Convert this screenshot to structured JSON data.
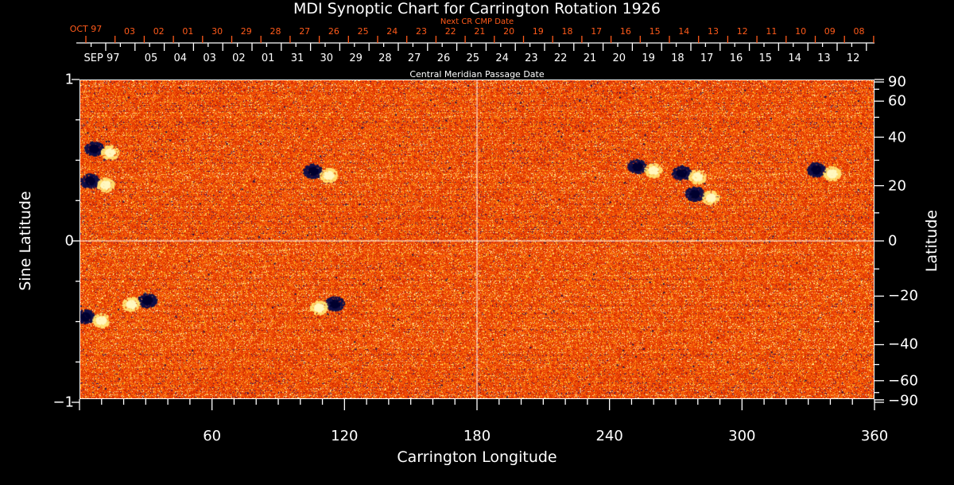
{
  "chart_data": {
    "type": "heatmap",
    "title": "MDI Synoptic Chart for Carrington Rotation 1926",
    "xlabel": "Carrington Longitude",
    "ylabel": "Sine Latitude",
    "y2label": "Latitude",
    "xlim": [
      0,
      360
    ],
    "ylim": [
      -1,
      1
    ],
    "x_ticks": [
      "60",
      "120",
      "180",
      "240",
      "300",
      "360"
    ],
    "y_ticks": [
      "1",
      "0",
      "−1"
    ],
    "y2_ticks": [
      "90",
      "60",
      "40",
      "20",
      "0",
      "−20",
      "−40",
      "−60",
      "−90"
    ],
    "top_axis": {
      "title": "Central Meridian Passage Date",
      "start_label": "SEP 97",
      "dates": [
        "05",
        "04",
        "03",
        "02",
        "01",
        "31",
        "30",
        "29",
        "28",
        "27",
        "26",
        "25",
        "24",
        "23",
        "22",
        "21",
        "20",
        "19",
        "18",
        "17",
        "16",
        "15",
        "14",
        "13",
        "12"
      ]
    },
    "top_axis_next": {
      "title": "Next CR CMP Date",
      "start_label": "OCT 97",
      "dates": [
        "03",
        "02",
        "01",
        "30",
        "29",
        "28",
        "27",
        "26",
        "25",
        "24",
        "23",
        "22",
        "21",
        "20",
        "19",
        "18",
        "17",
        "16",
        "15",
        "14",
        "13",
        "12",
        "11",
        "10",
        "09",
        "08"
      ]
    },
    "colors": {
      "background_field": "#f05010",
      "positive": "#fff8c0",
      "negative": "#10104a"
    },
    "active_regions": [
      {
        "lon": 6,
        "sinlat": 0.58,
        "neg_first": true
      },
      {
        "lon": 4,
        "sinlat": 0.38,
        "neg_first": true
      },
      {
        "lon": 105,
        "sinlat": 0.44,
        "neg_first": true
      },
      {
        "lon": 252,
        "sinlat": 0.47,
        "neg_first": true
      },
      {
        "lon": 272,
        "sinlat": 0.43,
        "neg_first": true
      },
      {
        "lon": 278,
        "sinlat": 0.3,
        "neg_first": true
      },
      {
        "lon": 333,
        "sinlat": 0.45,
        "neg_first": true
      },
      {
        "lon": 30,
        "sinlat": -0.36,
        "neg_first": false
      },
      {
        "lon": 2,
        "sinlat": -0.46,
        "neg_first": true
      },
      {
        "lon": 115,
        "sinlat": -0.38,
        "neg_first": false
      }
    ]
  }
}
